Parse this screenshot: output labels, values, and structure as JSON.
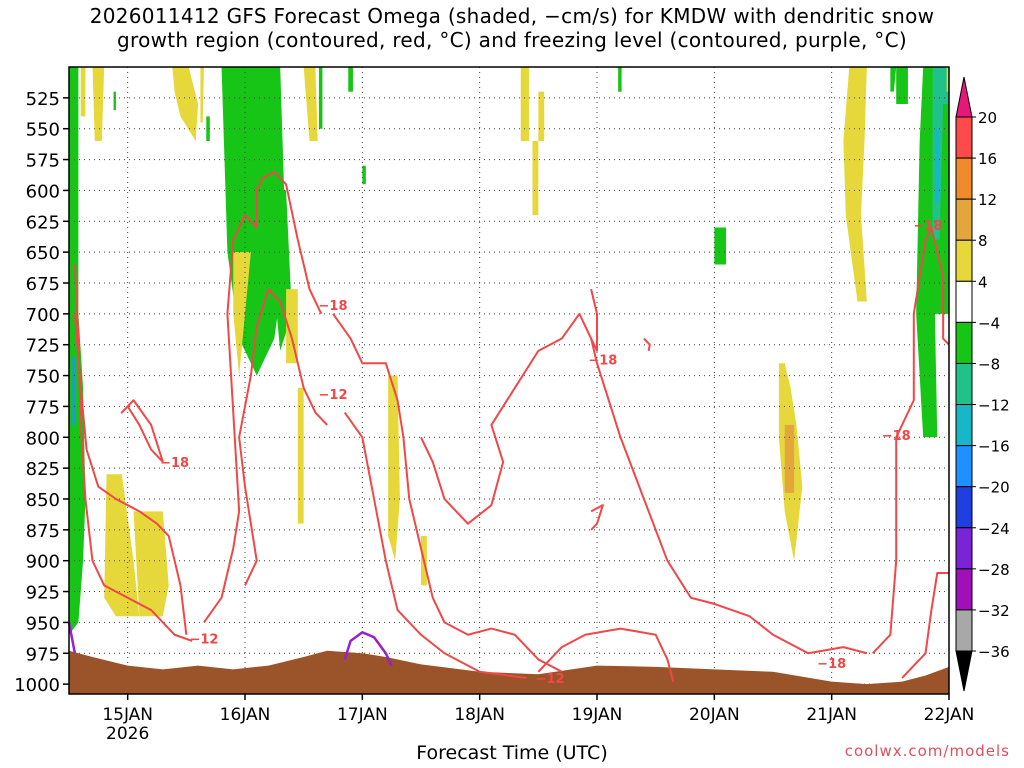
{
  "title_line1": "2026011412 GFS Forecast Omega (shaded, −cm/s) for KMDW with dendritic snow",
  "title_line2": "growth region (contoured, red, °C) and freezing level (contoured, purple, °C)",
  "credit": "coolwx.com/models",
  "chart_data": {
    "type": "heatmap",
    "xlabel": "Forecast Time (UTC)",
    "ylabel": "",
    "x_ticks": [
      "15JAN",
      "16JAN",
      "17JAN",
      "18JAN",
      "19JAN",
      "20JAN",
      "21JAN",
      "22JAN"
    ],
    "x_sub_label": "2026",
    "x_range_days": [
      -0.5,
      7.0
    ],
    "y_ticks": [
      525,
      550,
      575,
      600,
      625,
      650,
      675,
      700,
      725,
      750,
      775,
      800,
      825,
      850,
      875,
      900,
      925,
      950,
      975,
      1000
    ],
    "y_range_hpa": [
      500,
      1008
    ],
    "y_axis": "pressure (hPa), inverted",
    "grid": true,
    "colorbar_labels": [
      "20",
      "16",
      "12",
      "8",
      "4",
      "−4",
      "−8",
      "−12",
      "−16",
      "−20",
      "−24",
      "−28",
      "−32",
      "−36"
    ],
    "colorbar_colors": [
      "#ff4a4a",
      "#f08a2a",
      "#e2a63a",
      "#e6d83a",
      "#ffffff",
      "#17c517",
      "#20c28a",
      "#18b7c8",
      "#1e90ff",
      "#1f3fe0",
      "#7b23d6",
      "#a010b8",
      "#a8a8a8"
    ],
    "contour_labels": [
      {
        "text": "−18",
        "x": 0.4,
        "y": 820
      },
      {
        "text": "−12",
        "x": 0.65,
        "y": 963
      },
      {
        "text": "−18",
        "x": 1.75,
        "y": 693
      },
      {
        "text": "−12",
        "x": 1.75,
        "y": 765
      },
      {
        "text": "−18",
        "x": 4.05,
        "y": 737
      },
      {
        "text": "−12",
        "x": 3.6,
        "y": 995
      },
      {
        "text": "−18",
        "x": 6.55,
        "y": 798
      },
      {
        "text": "−18",
        "x": 6.0,
        "y": 983
      },
      {
        "text": "−18",
        "x": 6.82,
        "y": 628
      }
    ]
  }
}
